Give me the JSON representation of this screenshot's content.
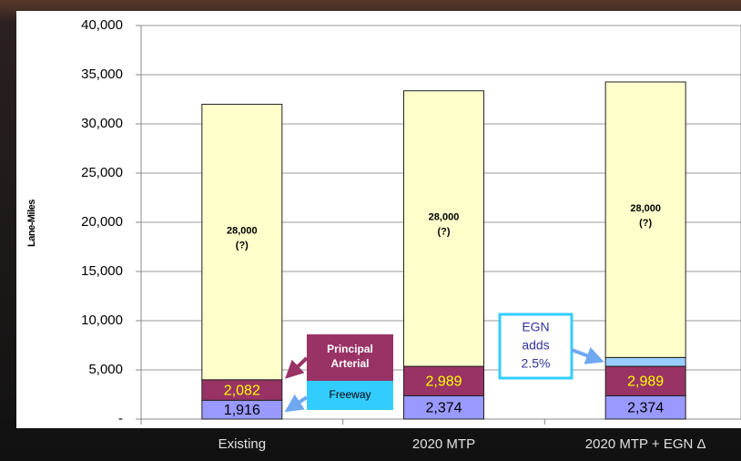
{
  "chart_data": {
    "type": "stacked-bar",
    "y_label": "Lane-Miles",
    "categories": [
      "Existing",
      "2020 MTP",
      "2020 MTP +  EGN Δ"
    ],
    "series": [
      {
        "name": "Freeway",
        "color": "#9999ff",
        "label_color": "#000000",
        "values": [
          1916,
          2374,
          2374
        ],
        "value_labels": [
          "1,916",
          "2,374",
          "2,374"
        ]
      },
      {
        "name": "Principal Arterial",
        "color": "#993366",
        "label_color": "#ffff00",
        "values": [
          2082,
          2989,
          2989
        ],
        "value_labels": [
          "2,082",
          "2,989",
          "2,989"
        ]
      },
      {
        "color": "#99ccff",
        "values": [
          null,
          null,
          900
        ],
        "annotation": [
          "EGN",
          "adds",
          "2.5%"
        ]
      },
      {
        "color": "#ffffcc",
        "label_color": "#000000",
        "values": [
          28000,
          28000,
          28000
        ],
        "value_labels": [
          "28,000",
          "28,000",
          "28,000"
        ],
        "note": "(?)"
      }
    ],
    "ylim": [
      0,
      40000
    ],
    "yticks": [
      {
        "value": 0,
        "label": "-"
      },
      {
        "value": 5000,
        "label": "5,000"
      },
      {
        "value": 10000,
        "label": "10,000"
      },
      {
        "value": 15000,
        "label": "15,000"
      },
      {
        "value": 20000,
        "label": "20,000"
      },
      {
        "value": 25000,
        "label": "25,000"
      },
      {
        "value": 30000,
        "label": "30,000"
      },
      {
        "value": 35000,
        "label": "35,000"
      },
      {
        "value": 40000,
        "label": "40,000"
      }
    ],
    "grid": true
  }
}
